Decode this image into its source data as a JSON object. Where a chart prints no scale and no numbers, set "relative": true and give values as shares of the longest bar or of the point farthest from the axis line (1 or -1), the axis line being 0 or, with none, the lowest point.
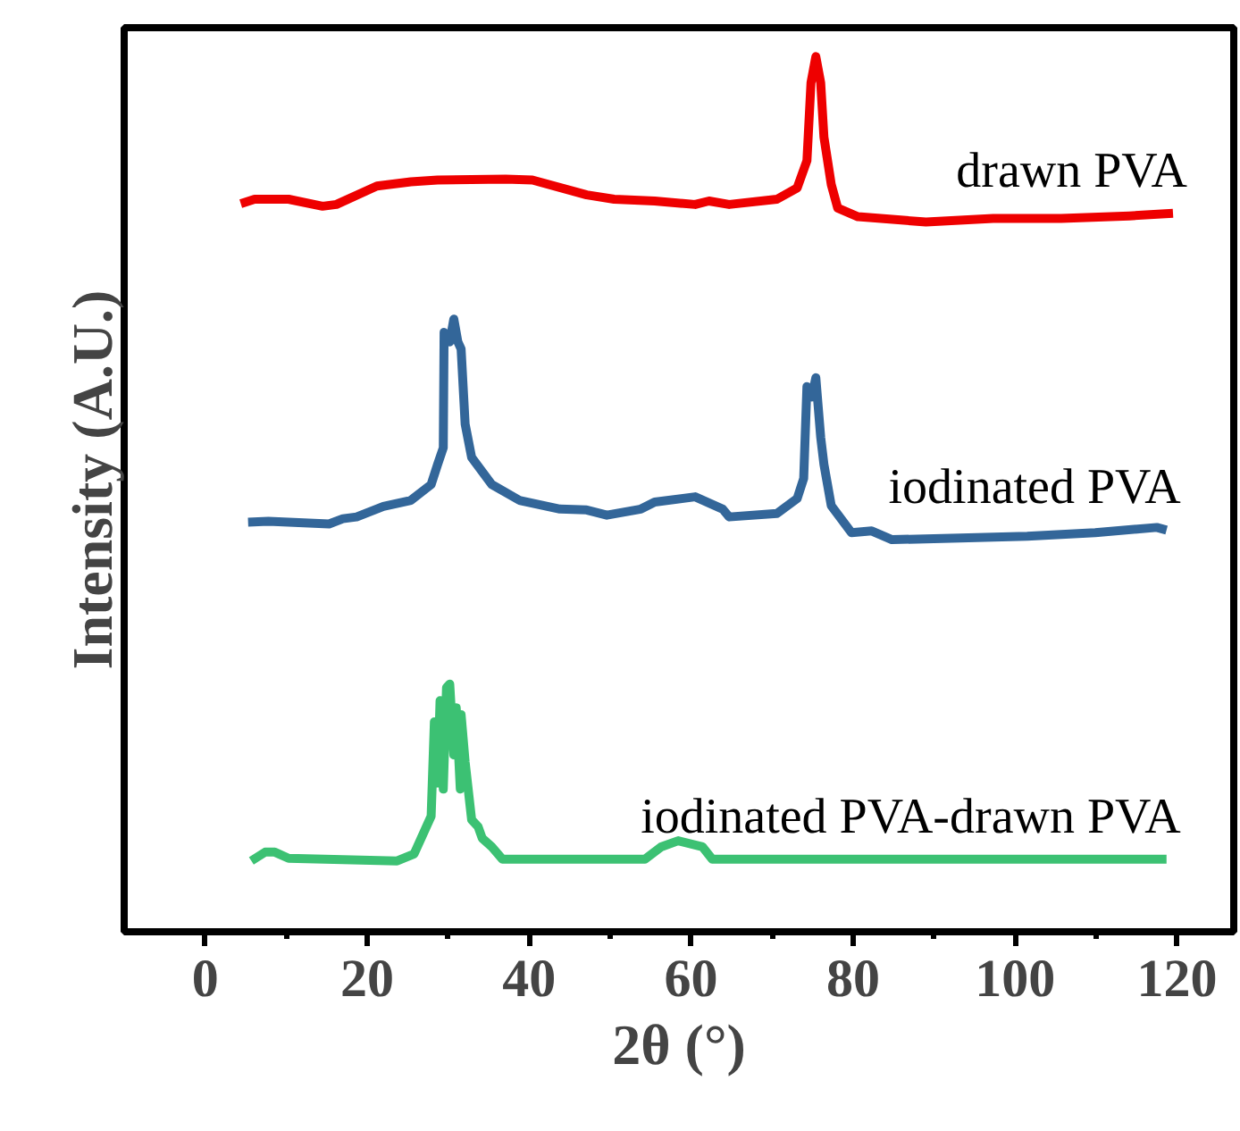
{
  "chart_data": {
    "type": "line",
    "relative": true,
    "xlabel": "2θ (°)",
    "ylabel": "Intensity (A.U.)",
    "xlim": [
      -10,
      127
    ],
    "xticks": [
      0,
      {
        "value": 10,
        "label": null
      },
      20,
      {
        "value": 30,
        "label": null
      },
      40,
      {
        "value": 50,
        "label": null
      },
      60,
      {
        "value": 70,
        "label": null
      },
      80,
      {
        "value": 90,
        "label": null
      },
      100,
      {
        "value": 110,
        "label": null
      },
      120
    ],
    "series": [
      {
        "name": "drawn PVA",
        "color": "#ee0000",
        "x": [
          4.4,
          6.1,
          10.3,
          14.5,
          16.2,
          21.2,
          25.4,
          28.7,
          37.1,
          40.4,
          47.1,
          50.5,
          55.5,
          60.5,
          62.2,
          64.7,
          70.6,
          73.1,
          74.3,
          74.8,
          75.4,
          76.0,
          76.4,
          77.3,
          78.1,
          80.6,
          89.0,
          97.3,
          105.7,
          114.1,
          119.5
        ],
        "values": [
          0.832,
          0.837,
          0.837,
          0.829,
          0.831,
          0.852,
          0.857,
          0.859,
          0.86,
          0.859,
          0.842,
          0.837,
          0.835,
          0.831,
          0.835,
          0.831,
          0.837,
          0.85,
          0.881,
          0.97,
          1.0,
          0.97,
          0.908,
          0.854,
          0.827,
          0.817,
          0.811,
          0.815,
          0.815,
          0.818,
          0.821
        ]
      },
      {
        "name": "iodinated PVA",
        "color": "#336699",
        "x": [
          5.3,
          7.8,
          15.3,
          17.0,
          18.7,
          22.0,
          25.4,
          27.9,
          28.7,
          29.4,
          29.5,
          30.2,
          30.7,
          31.2,
          31.6,
          32.1,
          32.9,
          35.4,
          38.8,
          43.8,
          47.1,
          49.6,
          53.8,
          55.5,
          60.5,
          63.9,
          64.7,
          70.6,
          73.1,
          73.9,
          74.3,
          74.9,
          75.4,
          76.0,
          76.4,
          77.3,
          79.8,
          82.3,
          84.8,
          93.2,
          101.5,
          109.9,
          117.5,
          118.7
        ],
        "values": [
          0.468,
          0.469,
          0.466,
          0.472,
          0.474,
          0.486,
          0.493,
          0.511,
          0.534,
          0.553,
          0.685,
          0.674,
          0.7,
          0.674,
          0.666,
          0.58,
          0.542,
          0.511,
          0.493,
          0.483,
          0.482,
          0.476,
          0.483,
          0.491,
          0.497,
          0.483,
          0.474,
          0.478,
          0.495,
          0.518,
          0.623,
          0.611,
          0.633,
          0.565,
          0.534,
          0.487,
          0.456,
          0.458,
          0.448,
          0.45,
          0.452,
          0.456,
          0.462,
          0.459
        ]
      },
      {
        "name": "iodinated PVA-drawn PVA",
        "color": "#3cc173",
        "x": [
          5.7,
          7.4,
          8.6,
          10.3,
          23.7,
          25.8,
          27.9,
          28.3,
          28.7,
          29.0,
          29.4,
          29.8,
          30.2,
          30.7,
          31.0,
          31.5,
          31.6,
          32.1,
          32.9,
          33.7,
          34.2,
          35.4,
          36.7,
          54.3,
          56.3,
          58.4,
          61.4,
          62.6,
          118.7
        ],
        "values": [
          0.081,
          0.091,
          0.091,
          0.084,
          0.081,
          0.089,
          0.132,
          0.24,
          0.17,
          0.264,
          0.163,
          0.279,
          0.283,
          0.202,
          0.256,
          0.163,
          0.248,
          0.194,
          0.128,
          0.12,
          0.107,
          0.097,
          0.083,
          0.083,
          0.097,
          0.104,
          0.097,
          0.083,
          0.083
        ]
      }
    ]
  }
}
